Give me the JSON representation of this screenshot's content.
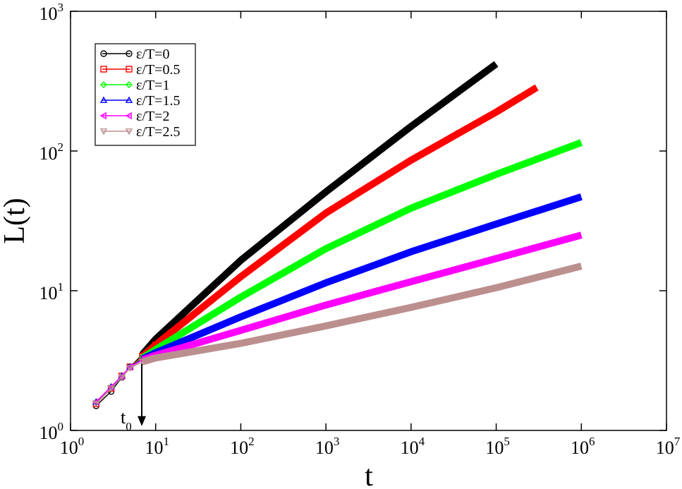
{
  "chart_data": {
    "type": "line",
    "xscale": "log",
    "yscale": "log",
    "xlim": [
      1,
      10000000
    ],
    "ylim": [
      1,
      1000
    ],
    "xlabel": "t",
    "ylabel": "L(t)",
    "grid": false,
    "legend_position": "top-left",
    "x_ticks": [
      {
        "base": "10",
        "exp": "0"
      },
      {
        "base": "10",
        "exp": "1"
      },
      {
        "base": "10",
        "exp": "2"
      },
      {
        "base": "10",
        "exp": "3"
      },
      {
        "base": "10",
        "exp": "4"
      },
      {
        "base": "10",
        "exp": "5"
      },
      {
        "base": "10",
        "exp": "6"
      },
      {
        "base": "10",
        "exp": "7"
      }
    ],
    "y_ticks": [
      {
        "base": "10",
        "exp": "0"
      },
      {
        "base": "10",
        "exp": "1"
      },
      {
        "base": "10",
        "exp": "2"
      },
      {
        "base": "10",
        "exp": "3"
      }
    ],
    "series": [
      {
        "name": "ε/T=0",
        "color": "#000000",
        "marker": "circle",
        "x": [
          2,
          3,
          4,
          5,
          7,
          10,
          100,
          1000,
          10000,
          100000
        ],
        "y": [
          1.5,
          1.9,
          2.4,
          2.85,
          3.5,
          4.5,
          16.5,
          51,
          150,
          420
        ]
      },
      {
        "name": "ε/T=0.5",
        "color": "#ff0000",
        "marker": "square",
        "x": [
          2,
          3,
          4,
          5,
          7,
          10,
          100,
          1000,
          10000,
          100000,
          300000
        ],
        "y": [
          1.55,
          2.0,
          2.45,
          2.85,
          3.4,
          4.1,
          12.6,
          36,
          86,
          190,
          285
        ]
      },
      {
        "name": "ε/T=1",
        "color": "#00ff00",
        "marker": "diamond",
        "x": [
          2,
          3,
          4,
          5,
          7,
          10,
          100,
          1000,
          10000,
          100000,
          1000000
        ],
        "y": [
          1.6,
          2.05,
          2.45,
          2.85,
          3.3,
          3.8,
          9.0,
          20,
          39,
          68,
          115
        ]
      },
      {
        "name": "ε/T=1.5",
        "color": "#0000ff",
        "marker": "triangle-up",
        "x": [
          2,
          3,
          4,
          5,
          7,
          10,
          100,
          1000,
          10000,
          100000,
          1000000
        ],
        "y": [
          1.6,
          2.05,
          2.45,
          2.85,
          3.25,
          3.6,
          6.5,
          11.4,
          19,
          30,
          47
        ]
      },
      {
        "name": "ε/T=2",
        "color": "#ff00ff",
        "marker": "triangle-left",
        "x": [
          2,
          3,
          4,
          5,
          7,
          10,
          100,
          1000,
          10000,
          100000,
          1000000
        ],
        "y": [
          1.6,
          2.05,
          2.45,
          2.85,
          3.2,
          3.45,
          5.2,
          7.9,
          11.6,
          17,
          25
        ]
      },
      {
        "name": "ε/T=2.5",
        "color": "#bc8f8f",
        "marker": "triangle-down",
        "x": [
          2,
          3,
          4,
          5,
          7,
          10,
          100,
          1000,
          10000,
          100000,
          1000000
        ],
        "y": [
          1.55,
          2.0,
          2.4,
          2.8,
          3.1,
          3.3,
          4.2,
          5.6,
          7.6,
          10.5,
          15
        ]
      }
    ],
    "annotations": [
      {
        "text": "t",
        "subscript": "0",
        "arrow_x": 7,
        "arrow_from_y": 3.0,
        "arrow_to_y": 1.1
      }
    ]
  }
}
